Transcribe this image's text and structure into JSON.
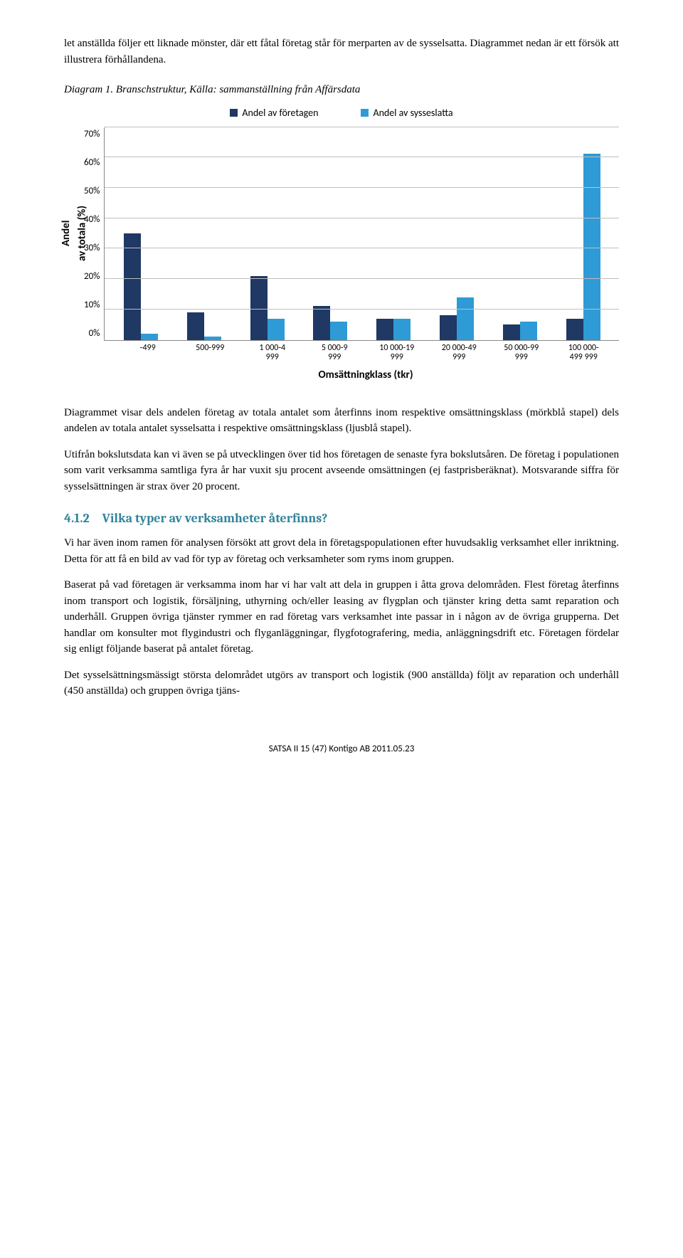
{
  "intro": {
    "p1": "let anställda följer ett liknade mönster, där ett fåtal företag står för merparten av de sysselsatta. Diagrammet nedan är ett försök att illustrera förhållandena.",
    "diagram_label": "Diagram 1. Branschstruktur, Källa: sammanställning från Affärsdata"
  },
  "chart": {
    "type": "bar",
    "legend": [
      {
        "label": "Andel av företagen",
        "color": "#1f3864"
      },
      {
        "label": "Andel av sysseslatta",
        "color": "#2e9bd6"
      }
    ],
    "y_title": "Andel\nav totala (%)",
    "x_title": "Omsättningklass (tkr)",
    "ymax": 70,
    "ytick_step": 10,
    "yticks": [
      "70%",
      "60%",
      "50%",
      "40%",
      "30%",
      "20%",
      "10%",
      "0%"
    ],
    "categories": [
      "-499",
      "500-999",
      "1 000-4 999",
      "5 000-9 999",
      "10 000-19 999",
      "20 000-49 999",
      "50 000-99 999",
      "100 000-499 999"
    ],
    "series1_color": "#1f3864",
    "series2_color": "#2e9bd6",
    "series1": [
      35,
      9,
      21,
      11,
      7,
      8,
      5,
      7
    ],
    "series2": [
      2,
      1,
      7,
      6,
      7,
      14,
      6,
      61
    ],
    "grid_color": "#bfbfbf",
    "border_color": "#888888",
    "font_family": "Calibri",
    "title_fontsize": 15,
    "tick_fontsize": 13
  },
  "body": {
    "p2": "Diagrammet visar dels andelen företag av totala antalet som återfinns inom respektive omsättningsklass (mörkblå stapel) dels andelen av totala antalet sysselsatta i respektive omsättningsklass (ljusblå stapel).",
    "p3": "Utifrån bokslutsdata kan vi även se på utvecklingen över tid hos företagen de senaste fyra bokslutsåren. De företag i populationen som varit verksamma samtliga fyra år har vuxit sju procent avseende omsättningen (ej fastprisberäknat). Motsvarande siffra för sysselsättningen är strax över 20 procent.",
    "heading_num": "4.1.2",
    "heading_text": "Vilka typer av verksamheter återfinns?",
    "p4": "Vi har även inom ramen för analysen försökt att grovt dela in företagspopulationen efter huvudsaklig verksamhet eller inriktning. Detta för att få en bild av vad för typ av företag och verksamheter som ryms inom gruppen.",
    "p5": "Baserat på vad företagen är verksamma inom har vi har valt att dela in gruppen i åtta grova delområden. Flest företag återfinns inom transport och logistik, försäljning, uthyrning och/eller leasing av flygplan och tjänster kring detta samt reparation och underhåll. Gruppen övriga tjänster rymmer en rad företag vars verksamhet inte passar in i någon av de övriga grupperna. Det handlar om konsulter mot flygindustri och flyganläggningar, flygfotografering, media, anläggningsdrift etc. Företagen fördelar sig enligt följande baserat på antalet företag.",
    "p6": "Det sysselsättningsmässigt största delområdet utgörs av transport och logistik (900 anställda) följt av reparation och underhåll (450 anställda) och gruppen övriga tjäns-"
  },
  "footer": "SATSA II 15 (47) Kontigo AB 2011.05.23"
}
